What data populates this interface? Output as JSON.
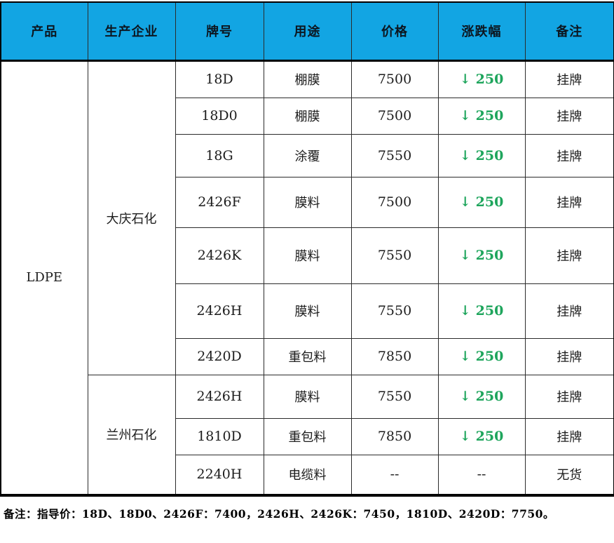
{
  "colors": {
    "header_bg": "#12a5e3",
    "down_green": "#1ea55c"
  },
  "icons": {
    "down_arrow": "↓"
  },
  "table": {
    "headers": [
      "产品",
      "生产企业",
      "牌号",
      "用途",
      "价格",
      "涨跌幅",
      "备注"
    ],
    "product": "LDPE",
    "producers": [
      {
        "name": "大庆石化",
        "row_count": 7
      },
      {
        "name": "兰州石化",
        "row_count": 3
      }
    ],
    "rows": [
      {
        "grade": "18D",
        "use": "棚膜",
        "price": "7500",
        "change_arrow": "↓",
        "change": "250",
        "remark": "挂牌"
      },
      {
        "grade": "18D0",
        "use": "棚膜",
        "price": "7500",
        "change_arrow": "↓",
        "change": "250",
        "remark": "挂牌"
      },
      {
        "grade": "18G",
        "use": "涂覆",
        "price": "7550",
        "change_arrow": "↓",
        "change": "250",
        "remark": "挂牌"
      },
      {
        "grade": "2426F",
        "use": "膜料",
        "price": "7500",
        "change_arrow": "↓",
        "change": "250",
        "remark": "挂牌"
      },
      {
        "grade": "2426K",
        "use": "膜料",
        "price": "7550",
        "change_arrow": "↓",
        "change": "250",
        "remark": "挂牌"
      },
      {
        "grade": "2426H",
        "use": "膜料",
        "price": "7550",
        "change_arrow": "↓",
        "change": "250",
        "remark": "挂牌"
      },
      {
        "grade": "2420D",
        "use": "重包料",
        "price": "7850",
        "change_arrow": "↓",
        "change": "250",
        "remark": "挂牌"
      },
      {
        "grade": "2426H",
        "use": "膜料",
        "price": "7550",
        "change_arrow": "↓",
        "change": "250",
        "remark": "挂牌"
      },
      {
        "grade": "1810D",
        "use": "重包料",
        "price": "7850",
        "change_arrow": "↓",
        "change": "250",
        "remark": "挂牌"
      },
      {
        "grade": "2240H",
        "use": "电缆料",
        "price": "--",
        "change_arrow": "",
        "change": "--",
        "remark": "无货"
      }
    ]
  },
  "footer_note": "备注：指导价：18D、18D0、2426F：7400，2426H、2426K：7450，1810D、2420D：7750。"
}
